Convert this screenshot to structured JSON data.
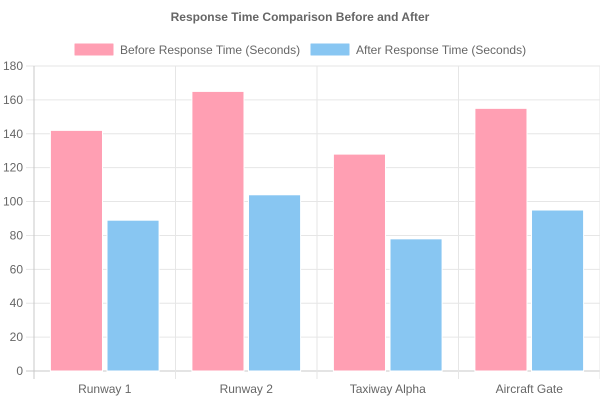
{
  "chart_data": {
    "type": "bar",
    "title": "Response Time Comparison Before and After",
    "xlabel": "",
    "ylabel": "",
    "categories": [
      "Runway 1",
      "Runway 2",
      "Taxiway Alpha",
      "Aircraft Gate"
    ],
    "series": [
      {
        "name": "Before Response Time (Seconds)",
        "values": [
          142,
          165,
          128,
          155
        ],
        "color": "#ff9fb3",
        "border": "#ffffff"
      },
      {
        "name": "After Response Time (Seconds)",
        "values": [
          89,
          104,
          78,
          95
        ],
        "color": "#88c6f2",
        "border": "#ffffff"
      }
    ],
    "ylim": [
      0,
      180
    ],
    "yticks": [
      0,
      20,
      40,
      60,
      80,
      100,
      120,
      140,
      160,
      180
    ],
    "grid": true,
    "legend_position": "top"
  }
}
